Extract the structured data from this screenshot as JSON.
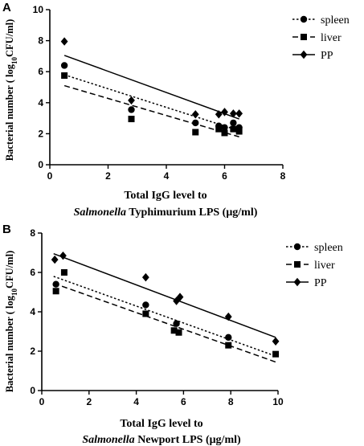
{
  "chart_data": [
    {
      "panel": "A",
      "type": "scatter",
      "ylabel": {
        "pre": "Bacterial number ( log",
        "sub": "10",
        "post": "CFU/ml)"
      },
      "xlabel_line1": "Total IgG level to",
      "xlabel_line2": {
        "italic": "Salmonella",
        "rest": " Typhimurium LPS (μg/ml)"
      },
      "xlim": [
        0,
        8
      ],
      "ylim": [
        0,
        10
      ],
      "xticks": [
        0,
        2,
        4,
        6,
        8
      ],
      "yticks": [
        0,
        2,
        4,
        6,
        8,
        10
      ],
      "legend_position": "top-right",
      "series": [
        {
          "name": "spleen",
          "marker": "circle",
          "line": "dotted",
          "x": [
            0.5,
            2.8,
            5.0,
            5.8,
            6.0,
            6.3,
            6.5
          ],
          "y": [
            6.4,
            3.55,
            2.7,
            2.5,
            2.4,
            2.7,
            2.4
          ],
          "fit": [
            [
              0.5,
              5.8
            ],
            [
              6.5,
              2.2
            ]
          ]
        },
        {
          "name": "liver",
          "marker": "square",
          "line": "dashed",
          "x": [
            0.5,
            2.8,
            5.0,
            5.8,
            6.0,
            6.3,
            6.5
          ],
          "y": [
            5.75,
            2.95,
            2.1,
            2.3,
            2.05,
            2.3,
            2.15
          ],
          "fit": [
            [
              0.5,
              5.1
            ],
            [
              6.5,
              1.8
            ]
          ]
        },
        {
          "name": "PP",
          "marker": "diamond",
          "line": "solid",
          "x": [
            0.5,
            2.8,
            5.0,
            5.8,
            6.0,
            6.3,
            6.5
          ],
          "y": [
            7.95,
            4.15,
            3.25,
            3.25,
            3.4,
            3.3,
            3.3
          ],
          "fit": [
            [
              0.5,
              7.05
            ],
            [
              6.5,
              2.95
            ]
          ]
        }
      ]
    },
    {
      "panel": "B",
      "type": "scatter",
      "ylabel": {
        "pre": "Bacterial number ( log",
        "sub": "10",
        "post": "CFU/ml)"
      },
      "xlabel_line1": "Total IgG level to",
      "xlabel_line2": {
        "italic": "Salmonella",
        "rest": " Newport LPS (μg/ml)"
      },
      "xlim": [
        0,
        10
      ],
      "ylim": [
        0,
        8
      ],
      "xticks": [
        0,
        2,
        4,
        6,
        8,
        10
      ],
      "yticks": [
        0,
        2,
        4,
        6,
        8
      ],
      "legend_position": "top-right",
      "series": [
        {
          "name": "spleen",
          "marker": "circle",
          "line": "dotted",
          "x": [
            0.6,
            4.4,
            5.7,
            7.9
          ],
          "y": [
            5.4,
            4.35,
            3.4,
            2.7
          ],
          "fit": [
            [
              0.5,
              5.8
            ],
            [
              9.9,
              1.75
            ]
          ]
        },
        {
          "name": "liver",
          "marker": "square",
          "line": "dashed",
          "x": [
            0.6,
            0.95,
            4.4,
            5.6,
            5.8,
            7.9,
            9.9
          ],
          "y": [
            5.05,
            6.0,
            3.9,
            3.05,
            2.95,
            2.3,
            1.85
          ],
          "fit": [
            [
              0.5,
              5.45
            ],
            [
              9.9,
              1.45
            ]
          ]
        },
        {
          "name": "PP",
          "marker": "diamond",
          "line": "solid",
          "x": [
            0.55,
            0.9,
            4.4,
            5.7,
            5.85,
            7.9,
            9.9
          ],
          "y": [
            6.65,
            6.85,
            5.75,
            4.55,
            4.75,
            3.75,
            2.5
          ],
          "fit": [
            [
              0.5,
              6.95
            ],
            [
              9.9,
              2.7
            ]
          ]
        }
      ]
    }
  ]
}
